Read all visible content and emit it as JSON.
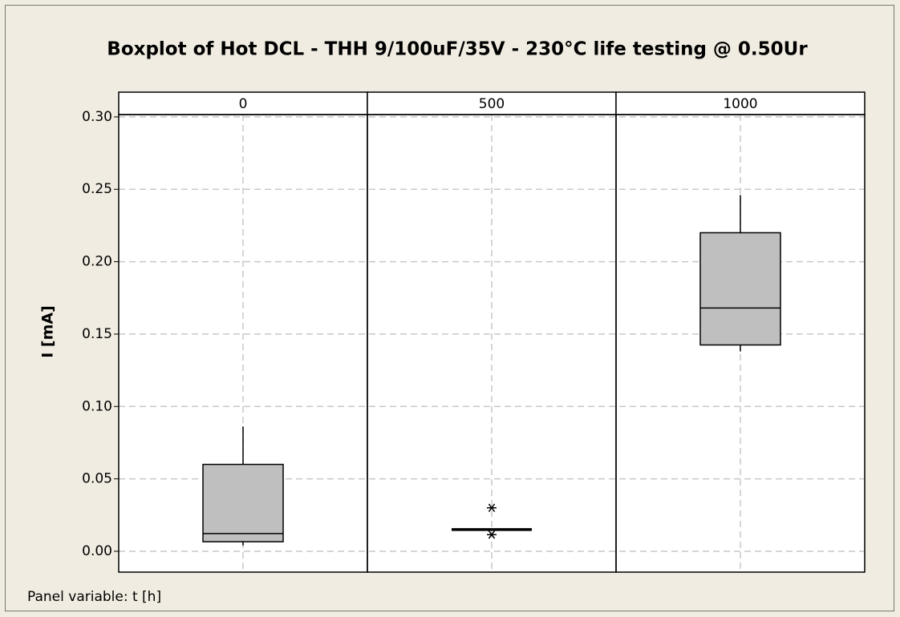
{
  "chart_data": {
    "type": "box",
    "title": "Boxplot of Hot DCL - THH 9/100uF/35V - 230°C life testing @ 0.50Ur",
    "ylabel": "I [mA]",
    "note": "Panel variable: t [h]",
    "categories": [
      "0",
      "500",
      "1000"
    ],
    "boxes": [
      {
        "min": 0.004,
        "q1": 0.0066,
        "median": 0.0122,
        "q3": 0.06,
        "max": 0.0862,
        "outliers": []
      },
      {
        "min": 0.015,
        "q1": 0.015,
        "median": 0.015,
        "q3": 0.015,
        "max": 0.015,
        "outliers": [
          0.03,
          0.0115
        ]
      },
      {
        "min": 0.138,
        "q1": 0.1425,
        "median": 0.168,
        "q3": 0.22,
        "max": 0.246,
        "outliers": []
      }
    ],
    "color": "#bfbfbf",
    "ylim": [
      -0.0144,
      0.3016
    ],
    "yticks": [
      {
        "value": 0,
        "label": "0.00"
      },
      {
        "value": 0.05,
        "label": "0.05"
      },
      {
        "value": 0.1,
        "label": "0.10"
      },
      {
        "value": 0.15,
        "label": "0.15"
      },
      {
        "value": 0.2,
        "label": "0.20"
      },
      {
        "value": 0.25,
        "label": "0.25"
      },
      {
        "value": 0.3,
        "label": "0.30"
      }
    ],
    "grid": true
  }
}
